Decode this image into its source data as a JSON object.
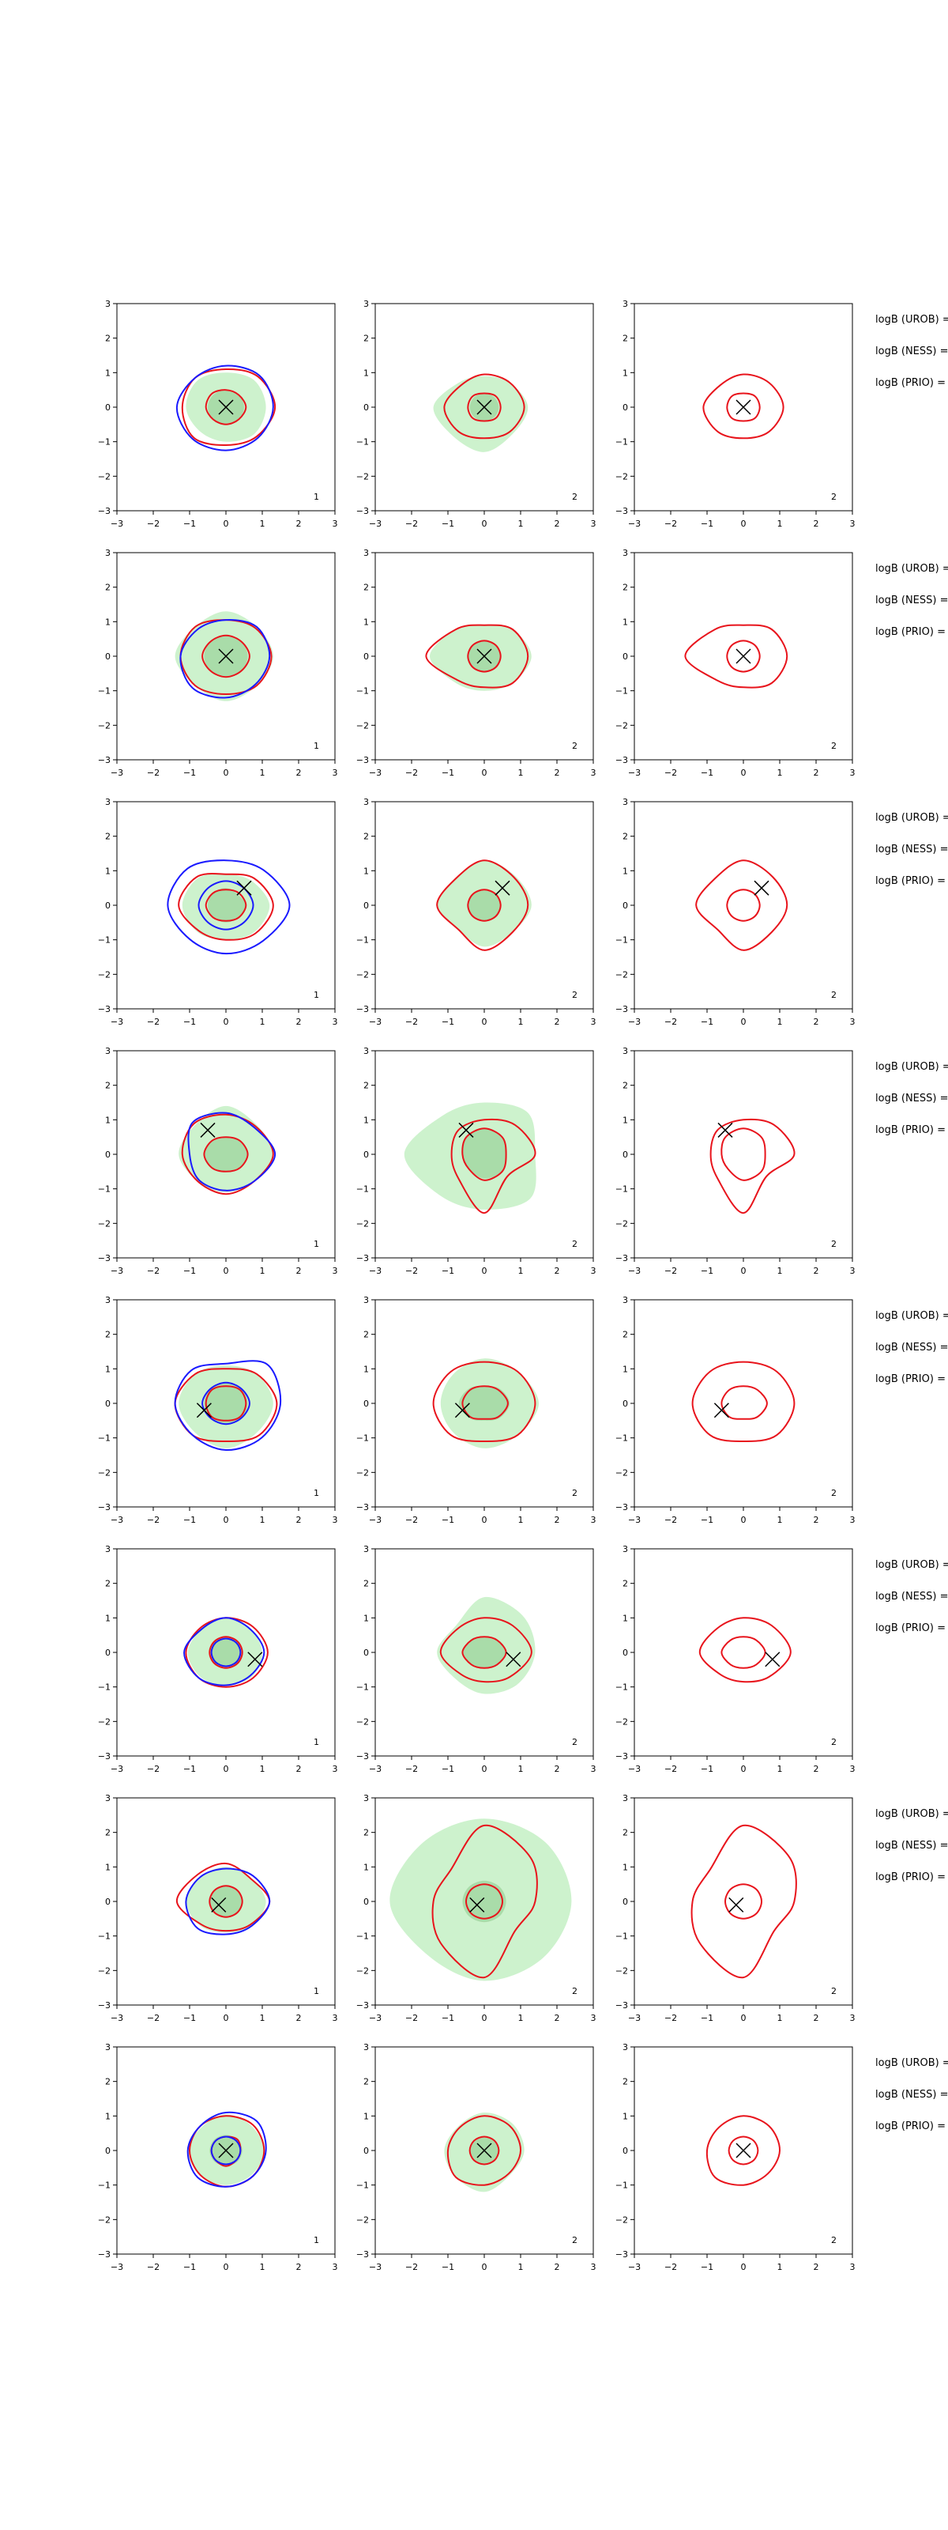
{
  "figure": {
    "colors": {
      "uncertainty_fill": "#cdf2cd",
      "uncertainty_fill_dark": "#a9dca9",
      "contour_red": "#e8141c",
      "contour_blue": "#1a1aff",
      "marker": "#000000"
    },
    "column_corner_labels": [
      "1",
      "2",
      "2"
    ],
    "side_labels": [
      "logB (UROB) =",
      "logB (NESS) =",
      "logB (PRIO) ="
    ]
  },
  "chart_data": {
    "type": "contour",
    "axes": {
      "xlim": [
        -3,
        3
      ],
      "ylim": [
        -3,
        3
      ],
      "xticks": [
        -3,
        -2,
        -1,
        0,
        1,
        2,
        3
      ],
      "yticks": [
        -3,
        -2,
        -1,
        0,
        1,
        2,
        3
      ],
      "grid": false
    },
    "columns": [
      {
        "panel_label": "1",
        "layers": [
          "fill",
          "red",
          "blue",
          "marker"
        ]
      },
      {
        "panel_label": "2",
        "layers": [
          "fill",
          "red",
          "marker"
        ]
      },
      {
        "panel_label": "2",
        "layers": [
          "red",
          "marker"
        ]
      }
    ],
    "rows": [
      {
        "marker": [
          0.0,
          0.0
        ],
        "fill": {
          "outer": [
            1.1,
            1.1,
            1.0,
            1.1,
            1.1,
            1.0,
            1.0,
            1.1
          ],
          "inner": [
            0.5,
            0.5,
            0.5,
            0.5,
            0.5,
            0.5,
            0.5,
            0.5
          ]
        },
        "red_col1": [
          [
            1.35,
            1.25,
            1.1,
            1.2,
            1.2,
            1.25,
            1.1,
            1.2
          ],
          [
            0.55,
            0.5,
            0.5,
            0.55,
            0.55,
            0.5,
            0.5,
            0.5
          ]
        ],
        "blue_col1": [
          [
            1.3,
            1.3,
            1.2,
            1.2,
            1.35,
            1.3,
            1.25,
            1.25
          ]
        ],
        "fill_col2": {
          "outer": [
            1.2,
            1.0,
            0.9,
            1.0,
            1.4,
            1.2,
            1.3,
            1.1
          ],
          "inner": [
            0.4,
            0.4,
            0.4,
            0.4,
            0.4,
            0.4,
            0.4,
            0.4
          ]
        },
        "red_col2": [
          [
            1.1,
            1.0,
            0.95,
            0.9,
            1.1,
            1.0,
            0.9,
            1.0
          ],
          [
            0.45,
            0.45,
            0.4,
            0.45,
            0.45,
            0.45,
            0.4,
            0.45
          ]
        ],
        "side_values": [
          "",
          "",
          ""
        ]
      },
      {
        "marker": [
          0.0,
          0.0
        ],
        "fill": {
          "outer": [
            1.3,
            1.2,
            1.3,
            1.2,
            1.4,
            1.2,
            1.3,
            1.2
          ],
          "inner": [
            0.6,
            0.6,
            0.6,
            0.6,
            0.6,
            0.6,
            0.6,
            0.6
          ]
        },
        "red_col1": [
          [
            1.25,
            1.15,
            1.05,
            1.2,
            1.25,
            1.2,
            1.1,
            1.2
          ],
          [
            0.65,
            0.6,
            0.6,
            0.6,
            0.65,
            0.6,
            0.6,
            0.6
          ]
        ],
        "blue_col1": [
          [
            1.2,
            1.2,
            1.05,
            1.1,
            1.25,
            1.3,
            1.2,
            1.15
          ]
        ],
        "fill_col2": {
          "outer": [
            1.3,
            1.1,
            0.9,
            1.1,
            1.5,
            1.1,
            1.0,
            1.1
          ],
          "inner": [
            0.45,
            0.45,
            0.45,
            0.45,
            0.45,
            0.45,
            0.45,
            0.45
          ]
        },
        "red_col2": [
          [
            1.2,
            1.1,
            0.9,
            1.1,
            1.6,
            1.0,
            0.9,
            1.1
          ],
          [
            0.45,
            0.45,
            0.45,
            0.45,
            0.45,
            0.45,
            0.45,
            0.45
          ]
        ],
        "side_values": [
          "",
          "",
          ""
        ]
      },
      {
        "marker": [
          0.5,
          0.5
        ],
        "fill": {
          "outer": [
            1.2,
            1.0,
            0.9,
            1.1,
            1.2,
            1.1,
            1.0,
            1.1
          ],
          "inner": [
            0.55,
            0.45,
            0.5,
            0.5,
            0.5,
            0.5,
            0.5,
            0.5
          ]
        },
        "red_col1": [
          [
            1.3,
            1.1,
            0.9,
            1.15,
            1.3,
            1.05,
            1.0,
            1.15
          ],
          [
            0.55,
            0.5,
            0.45,
            0.5,
            0.55,
            0.5,
            0.45,
            0.5
          ]
        ],
        "blue_col1": [
          [
            1.75,
            1.45,
            1.3,
            1.5,
            1.6,
            1.4,
            1.4,
            1.45
          ],
          [
            0.75,
            0.7,
            0.7,
            0.7,
            0.75,
            0.7,
            0.7,
            0.7
          ]
        ],
        "fill_col2": {
          "outer": [
            1.3,
            1.2,
            1.3,
            1.1,
            1.3,
            1.0,
            1.2,
            1.1
          ],
          "inner": [
            0.45,
            0.45,
            0.45,
            0.45,
            0.45,
            0.45,
            0.45,
            0.45
          ]
        },
        "red_col2": [
          [
            1.2,
            1.15,
            1.3,
            1.1,
            1.3,
            1.0,
            1.3,
            1.1
          ],
          [
            0.45,
            0.45,
            0.45,
            0.45,
            0.45,
            0.45,
            0.45,
            0.45
          ]
        ],
        "side_values": [
          "",
          "",
          ""
        ]
      },
      {
        "marker": [
          -0.5,
          0.7
        ],
        "fill": {
          "outer": [
            1.3,
            1.2,
            1.4,
            1.2,
            1.3,
            1.1,
            1.1,
            1.1
          ],
          "inner": [
            0.6,
            0.55,
            0.5,
            0.55,
            0.6,
            0.55,
            0.5,
            0.55
          ]
        },
        "red_col1": [
          [
            1.3,
            1.15,
            1.15,
            1.25,
            1.2,
            1.1,
            1.15,
            1.1
          ],
          [
            0.6,
            0.55,
            0.5,
            0.55,
            0.6,
            0.55,
            0.5,
            0.55
          ]
        ],
        "blue_col1": [
          [
            1.35,
            1.1,
            1.2,
            1.3,
            1.0,
            1.05,
            1.05,
            1.1
          ]
        ],
        "fill_col2": {
          "outer": [
            1.4,
            1.7,
            1.5,
            1.6,
            2.2,
            1.7,
            1.6,
            1.8
          ],
          "inner": [
            0.6,
            0.7,
            0.75,
            0.7,
            0.6,
            0.6,
            0.7,
            0.7
          ]
        },
        "red_col2": [
          [
            1.4,
            1.2,
            1.0,
            1.0,
            0.9,
            1.0,
            1.7,
            0.9
          ],
          [
            0.6,
            0.7,
            0.75,
            0.7,
            0.6,
            0.6,
            0.75,
            0.7
          ]
        ],
        "side_values": [
          "",
          "",
          ""
        ]
      },
      {
        "marker": [
          -0.6,
          -0.2
        ],
        "fill": {
          "outer": [
            1.3,
            1.2,
            1.1,
            1.2,
            1.3,
            1.2,
            1.3,
            1.2
          ],
          "inner": [
            0.6,
            0.6,
            0.6,
            0.6,
            0.6,
            0.6,
            0.6,
            0.6
          ]
        },
        "red_col1": [
          [
            1.4,
            1.2,
            1.0,
            1.2,
            1.4,
            1.3,
            1.1,
            1.3
          ],
          [
            0.55,
            0.55,
            0.5,
            0.55,
            0.55,
            0.55,
            0.5,
            0.55
          ]
        ],
        "blue_col1": [
          [
            1.5,
            1.6,
            1.15,
            1.35,
            1.4,
            1.3,
            1.35,
            1.4
          ],
          [
            0.65,
            0.6,
            0.6,
            0.6,
            0.65,
            0.6,
            0.6,
            0.6
          ]
        ],
        "fill_col2": {
          "outer": [
            1.5,
            1.3,
            1.3,
            1.2,
            1.2,
            1.2,
            1.3,
            1.3
          ],
          "inner": [
            0.7,
            0.6,
            0.5,
            0.6,
            0.7,
            0.6,
            0.5,
            0.6
          ]
        },
        "red_col2": [
          [
            1.4,
            1.3,
            1.2,
            1.3,
            1.4,
            1.3,
            1.1,
            1.3
          ],
          [
            0.65,
            0.55,
            0.5,
            0.55,
            0.6,
            0.55,
            0.45,
            0.55
          ]
        ],
        "side_values": [
          "",
          "",
          ""
        ]
      },
      {
        "marker": [
          0.8,
          -0.2
        ],
        "fill": {
          "outer": [
            1.0,
            0.95,
            1.0,
            0.95,
            1.05,
            1.0,
            0.95,
            1.0
          ],
          "inner": [
            0.45,
            0.45,
            0.45,
            0.45,
            0.45,
            0.45,
            0.45,
            0.45
          ]
        },
        "red_col1": [
          [
            1.15,
            1.05,
            1.0,
            1.0,
            1.1,
            1.05,
            1.0,
            1.05
          ],
          [
            0.45,
            0.45,
            0.45,
            0.45,
            0.45,
            0.45,
            0.45,
            0.45
          ]
        ],
        "blue_col1": [
          [
            1.05,
            0.95,
            1.0,
            0.95,
            1.15,
            1.05,
            0.95,
            0.95
          ],
          [
            0.4,
            0.4,
            0.4,
            0.4,
            0.4,
            0.4,
            0.4,
            0.4
          ]
        ],
        "fill_col2": {
          "outer": [
            1.4,
            1.5,
            1.6,
            1.1,
            1.3,
            1.1,
            1.2,
            1.3
          ],
          "inner": [
            0.6,
            0.5,
            0.45,
            0.5,
            0.6,
            0.5,
            0.45,
            0.5
          ]
        },
        "red_col2": [
          [
            1.3,
            1.1,
            1.0,
            1.0,
            1.2,
            0.9,
            0.85,
            1.0
          ],
          [
            0.6,
            0.5,
            0.45,
            0.5,
            0.6,
            0.5,
            0.45,
            0.5
          ]
        ],
        "side_values": [
          "",
          "",
          ""
        ]
      },
      {
        "marker": [
          -0.2,
          -0.1
        ],
        "fill": {
          "outer": [
            1.1,
            0.95,
            1.0,
            1.0,
            1.1,
            1.0,
            0.9,
            1.0
          ],
          "inner": [
            0.45,
            0.45,
            0.45,
            0.45,
            0.45,
            0.45,
            0.45,
            0.45
          ]
        },
        "red_col1": [
          [
            1.2,
            0.95,
            1.1,
            1.1,
            1.35,
            0.95,
            0.85,
            0.95
          ],
          [
            0.45,
            0.45,
            0.45,
            0.45,
            0.45,
            0.45,
            0.45,
            0.45
          ]
        ],
        "blue_col1": [
          [
            1.2,
            1.05,
            0.95,
            1.0,
            1.1,
            1.1,
            0.95,
            1.0
          ]
        ],
        "fill_col2": {
          "outer": [
            2.4,
            2.4,
            2.4,
            2.4,
            2.6,
            2.2,
            2.3,
            2.3
          ],
          "inner": [
            0.6,
            0.6,
            0.6,
            0.6,
            0.6,
            0.6,
            0.6,
            0.6
          ]
        },
        "red_col2": [
          [
            1.4,
            1.8,
            2.2,
            1.3,
            1.4,
            1.7,
            2.2,
            1.2
          ],
          [
            0.5,
            0.5,
            0.5,
            0.5,
            0.5,
            0.5,
            0.5,
            0.5
          ]
        ],
        "side_values": [
          "",
          "",
          ""
        ]
      },
      {
        "marker": [
          0.0,
          0.0
        ],
        "fill": {
          "outer": [
            1.05,
            1.0,
            1.05,
            0.95,
            1.05,
            1.0,
            1.0,
            1.0
          ],
          "inner": [
            0.45,
            0.45,
            0.45,
            0.45,
            0.45,
            0.45,
            0.45,
            0.45
          ]
        },
        "red_col1": [
          [
            1.05,
            1.05,
            1.0,
            1.0,
            1.0,
            1.0,
            1.05,
            1.05
          ],
          [
            0.4,
            0.45,
            0.4,
            0.4,
            0.4,
            0.4,
            0.45,
            0.4
          ]
        ],
        "blue_col1": [
          [
            1.1,
            1.2,
            1.1,
            1.0,
            1.05,
            1.1,
            1.05,
            1.05
          ],
          [
            0.4,
            0.4,
            0.4,
            0.4,
            0.4,
            0.4,
            0.4,
            0.4
          ]
        ],
        "fill_col2": {
          "outer": [
            1.1,
            1.1,
            1.1,
            1.0,
            1.1,
            1.1,
            1.2,
            1.0
          ],
          "inner": [
            0.4,
            0.4,
            0.4,
            0.4,
            0.4,
            0.4,
            0.4,
            0.4
          ]
        },
        "red_col2": [
          [
            1.0,
            1.0,
            1.0,
            0.95,
            1.0,
            1.1,
            1.0,
            0.95
          ],
          [
            0.4,
            0.4,
            0.4,
            0.4,
            0.4,
            0.4,
            0.4,
            0.4
          ]
        ],
        "side_values": [
          "",
          "",
          ""
        ]
      }
    ]
  }
}
